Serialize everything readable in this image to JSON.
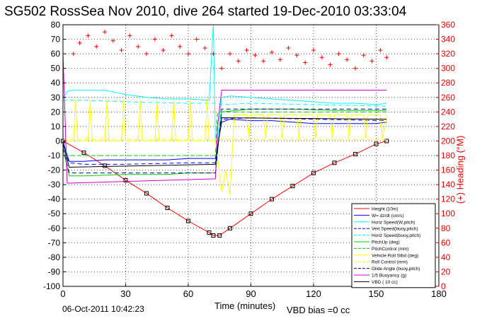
{
  "title": "SG502 RossSea Nov 2010, dive 264 started 19-Dec-2010 03:33:04",
  "footer_date": "06-Oct-2011 10:42:23",
  "vbd_bias": "VBD bias =0 cc",
  "chart_data": {
    "type": "line",
    "xlabel": "Time (minutes)",
    "ylabel": "",
    "y2label": "(+) Heading (°M)",
    "xlim": [
      0,
      180
    ],
    "ylim": [
      -100,
      80
    ],
    "y2lim": [
      0,
      360
    ],
    "xticks": [
      0,
      30,
      60,
      90,
      120,
      150,
      180
    ],
    "yticks": [
      -100,
      -90,
      -80,
      -70,
      -60,
      -50,
      -40,
      -30,
      -20,
      -10,
      0,
      10,
      20,
      30,
      40,
      50,
      60,
      70,
      80
    ],
    "y2ticks": [
      0,
      20,
      40,
      60,
      80,
      100,
      120,
      140,
      160,
      180,
      200,
      220,
      240,
      260,
      280,
      300,
      320,
      340,
      360
    ],
    "grid": true,
    "legend_position": "bottom-right",
    "colors": {
      "height": "#ff0000",
      "w": "#0000ff",
      "horz_speed": "#00ffff",
      "pitch": "#00cc00",
      "roll": "#ffff00",
      "glide": "#0000aa",
      "buoyancy": "#cc00cc",
      "vbd": "#000000",
      "heading": "#ff0000"
    },
    "series": [
      {
        "name": "Height (10m)",
        "key": "height",
        "style": "solid",
        "x": [
          0,
          10,
          20,
          30,
          40,
          50,
          60,
          70,
          72,
          75,
          80,
          90,
          100,
          110,
          120,
          130,
          140,
          150,
          155
        ],
        "values": [
          0,
          -8,
          -17,
          -27,
          -36,
          -46,
          -55,
          -63,
          -65,
          -65,
          -60,
          -50,
          -40,
          -31,
          -22,
          -15,
          -9,
          -2,
          0
        ]
      },
      {
        "name": "W= dz/dt (cm/s)",
        "key": "w",
        "style": "solid",
        "x": [
          0,
          1,
          3,
          10,
          20,
          30,
          40,
          50,
          60,
          70,
          73,
          76,
          80,
          90,
          100,
          110,
          120,
          130,
          140,
          150,
          155
        ],
        "values": [
          0,
          -5,
          -14,
          -14,
          -13,
          -13,
          -13,
          -13,
          -12,
          -12,
          -12,
          13,
          15,
          14,
          14,
          13,
          12,
          12,
          12,
          12,
          13
        ]
      },
      {
        "name": "Horiz Speed(W,pitch)",
        "key": "horz_speed",
        "style": "solid",
        "x": [
          0,
          2,
          4,
          10,
          20,
          30,
          40,
          50,
          60,
          70,
          72,
          73,
          74,
          76,
          80,
          90,
          100,
          110,
          120,
          130,
          140,
          150,
          155
        ],
        "values": [
          30,
          34,
          35,
          35,
          35,
          32,
          30,
          29,
          29,
          28,
          80,
          0,
          0,
          30,
          31,
          30,
          29,
          28,
          27,
          26,
          26,
          25,
          26
        ]
      },
      {
        "name": "Vert Speed(buoy,pitch)",
        "key": "w",
        "style": "dashed",
        "x": [
          0,
          3,
          10,
          30,
          60,
          73,
          76,
          90,
          120,
          155
        ],
        "values": [
          -2,
          -15,
          -16,
          -16,
          -15,
          -15,
          15,
          16,
          15,
          14
        ]
      },
      {
        "name": "Horiz Speed(buoy,pitch)",
        "key": "horz_speed",
        "style": "dashed",
        "x": [
          0,
          3,
          10,
          30,
          60,
          73,
          76,
          90,
          120,
          155
        ],
        "values": [
          28,
          28,
          28,
          27,
          26,
          26,
          25,
          26,
          25,
          24
        ]
      },
      {
        "name": "PitchUp (deg)",
        "key": "pitch",
        "style": "solid",
        "x": [
          0,
          3,
          10,
          30,
          50,
          60,
          70,
          73,
          76,
          90,
          110,
          130,
          155
        ],
        "values": [
          -5,
          -24,
          -24,
          -23,
          -23,
          -22,
          -22,
          -22,
          20,
          22,
          22,
          21,
          21
        ]
      },
      {
        "name": "PitchControl (mm)",
        "key": "pitch",
        "style": "dashed",
        "x": [
          0,
          3,
          73,
          74,
          155
        ],
        "values": [
          -10,
          -10,
          -10,
          20,
          20
        ]
      },
      {
        "name": "Vehicle Roll Stbd (deg)",
        "key": "roll",
        "style": "solid",
        "x": [
          0,
          5,
          6,
          7,
          12,
          13,
          14,
          20,
          21,
          22,
          28,
          29,
          30,
          36,
          37,
          38,
          44,
          45,
          46,
          52,
          53,
          54,
          60,
          61,
          62,
          68,
          69,
          70,
          73,
          76,
          78,
          80,
          82,
          88,
          89,
          90,
          96,
          97,
          98,
          104,
          105,
          106,
          112,
          113,
          114,
          120,
          121,
          122,
          128,
          129,
          130,
          136,
          137,
          138,
          144,
          145,
          146,
          152,
          153,
          155
        ],
        "values": [
          0,
          0,
          28,
          0,
          0,
          28,
          0,
          0,
          28,
          0,
          0,
          28,
          0,
          0,
          28,
          0,
          0,
          28,
          0,
          0,
          28,
          0,
          0,
          28,
          0,
          0,
          28,
          0,
          0,
          -35,
          -20,
          -37,
          18,
          18,
          2,
          18,
          18,
          2,
          18,
          18,
          2,
          18,
          18,
          2,
          18,
          18,
          2,
          18,
          18,
          2,
          18,
          18,
          2,
          18,
          18,
          2,
          18,
          18,
          2,
          18
        ]
      },
      {
        "name": "Roll Control (mm)",
        "key": "roll",
        "style": "dashed",
        "x": [
          0,
          155
        ],
        "values": [
          1,
          1
        ]
      },
      {
        "name": "Glide Angle (buoy,pitch)",
        "key": "glide",
        "style": "dashed",
        "x": [
          0,
          3,
          73,
          76,
          155
        ],
        "values": [
          -5,
          -22,
          -22,
          22,
          22
        ]
      },
      {
        "name": "1/5 Buoyancy (g)",
        "key": "buoyancy",
        "style": "solid",
        "x": [
          0,
          2,
          3,
          73,
          74,
          76,
          155
        ],
        "values": [
          60,
          -29,
          -29,
          -26,
          10,
          35,
          35
        ]
      },
      {
        "name": "VBD ( 10 cc)",
        "key": "vbd",
        "style": "solid",
        "x": [
          0,
          3,
          73,
          76,
          155
        ],
        "values": [
          -2,
          -18,
          -16,
          16,
          15
        ]
      }
    ],
    "heading": {
      "name": "Heading (°M)",
      "axis": "y2",
      "x": [
        5,
        8,
        12,
        16,
        20,
        24,
        28,
        32,
        36,
        40,
        44,
        48,
        52,
        56,
        60,
        64,
        68,
        72,
        76,
        80,
        84,
        88,
        92,
        96,
        100,
        104,
        108,
        112,
        116,
        120,
        124,
        128,
        132,
        136,
        140,
        144,
        148,
        152,
        155
      ],
      "values": [
        320,
        335,
        345,
        330,
        350,
        338,
        325,
        345,
        330,
        320,
        340,
        325,
        345,
        330,
        320,
        340,
        328,
        320,
        300,
        320,
        310,
        325,
        318,
        310,
        322,
        312,
        328,
        318,
        308,
        325,
        315,
        305,
        320,
        312,
        300,
        318,
        310,
        325,
        315
      ]
    }
  }
}
